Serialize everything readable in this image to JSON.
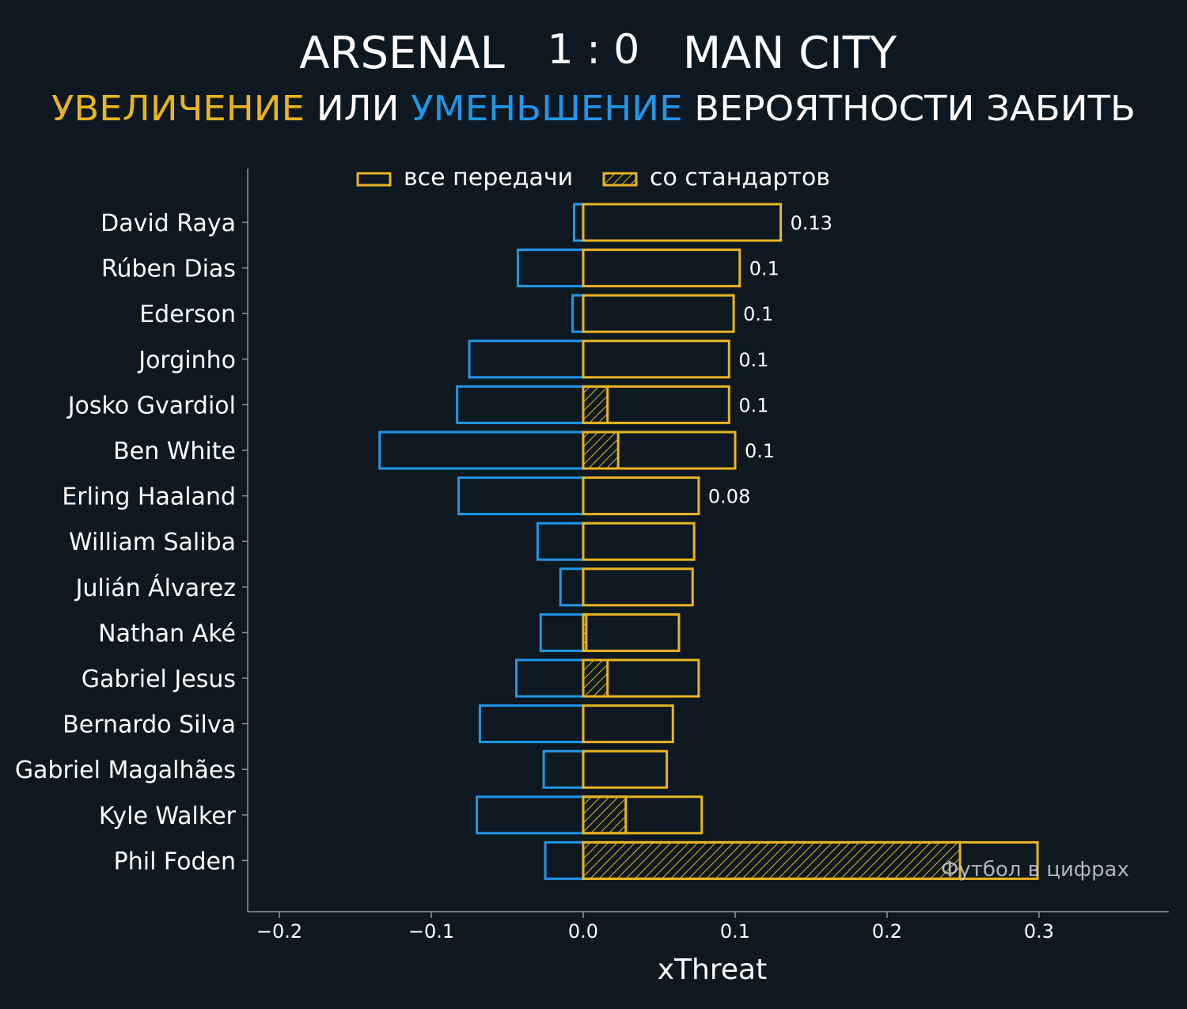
{
  "header": {
    "home_team": "ARSENAL",
    "score": "1 : 0",
    "away_team": "MAN CITY",
    "subtitle_part1": "УВЕЛИЧЕНИЕ",
    "subtitle_part2": " ИЛИ ",
    "subtitle_part3": "УМЕНЬШЕНИЕ",
    "subtitle_part4": " ВЕРОЯТНОСТИ ЗАБИТЬ"
  },
  "watermark": "Футбол в цифрах",
  "colors": {
    "background": "#0e1820",
    "increase": "#e8b422",
    "decrease": "#2196e8",
    "text": "#ffffff",
    "axis": "#8a969e"
  },
  "chart_data": {
    "type": "bar",
    "orientation": "horizontal",
    "xlabel": "xThreat",
    "ylabel": "",
    "xlim": [
      -0.22,
      0.385
    ],
    "xticks": [
      -0.2,
      -0.1,
      0.0,
      0.1,
      0.2,
      0.3
    ],
    "xtick_labels": [
      "−0.2",
      "−0.1",
      "0.0",
      "0.1",
      "0.2",
      "0.3"
    ],
    "legend": {
      "placement": "top-center",
      "entries": [
        "все передачи",
        "со стандартов"
      ]
    },
    "categories": [
      "David Raya",
      "Rúben Dias",
      "Ederson",
      "Jorginho",
      "Josko Gvardiol",
      "Ben White",
      "Erling Haaland",
      "William Saliba",
      "Julián Álvarez",
      "Nathan Aké",
      "Gabriel Jesus",
      "Bernardo Silva",
      "Gabriel Magalhães",
      "Kyle Walker",
      "Phil Foden"
    ],
    "series": [
      {
        "name": "все передачи",
        "positive": [
          0.13,
          0.103,
          0.099,
          0.096,
          0.096,
          0.1,
          0.076,
          0.073,
          0.072,
          0.063,
          0.076,
          0.059,
          0.055,
          0.078,
          0.299
        ],
        "negative": [
          -0.006,
          -0.043,
          -0.007,
          -0.075,
          -0.083,
          -0.134,
          -0.082,
          -0.03,
          -0.015,
          -0.028,
          -0.044,
          -0.068,
          -0.026,
          -0.07,
          -0.025
        ]
      },
      {
        "name": "со стандартов",
        "positive": [
          0,
          0,
          0,
          0,
          0.016,
          0.023,
          0,
          0,
          0,
          0.002,
          0.016,
          0,
          0,
          0.028,
          0.248
        ]
      }
    ],
    "value_labels": [
      "0.13",
      "0.1",
      "0.1",
      "0.1",
      "0.1",
      "0.1",
      "0.08",
      "",
      "",
      "",
      "",
      "",
      "",
      "",
      ""
    ],
    "grid": false
  }
}
